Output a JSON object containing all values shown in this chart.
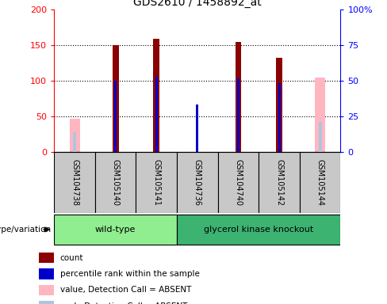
{
  "title": "GDS2610 / 1458892_at",
  "samples": [
    "GSM104738",
    "GSM105140",
    "GSM105141",
    "GSM104736",
    "GSM104740",
    "GSM105142",
    "GSM105144"
  ],
  "count_values": [
    null,
    150,
    158,
    null,
    154,
    132,
    null
  ],
  "percentile_rank": [
    null,
    100,
    105,
    67,
    103,
    96,
    null
  ],
  "absent_value": [
    47,
    null,
    null,
    null,
    null,
    null,
    104
  ],
  "absent_rank": [
    28,
    null,
    null,
    null,
    null,
    null,
    42
  ],
  "ylim_left": [
    0,
    200
  ],
  "ylim_right": [
    0,
    100
  ],
  "yticks_left": [
    0,
    50,
    100,
    150,
    200
  ],
  "yticks_right": [
    0,
    25,
    50,
    75,
    100
  ],
  "ytick_labels_left": [
    "0",
    "50",
    "100",
    "150",
    "200"
  ],
  "ytick_labels_right": [
    "0",
    "25",
    "50",
    "75",
    "100%"
  ],
  "group1_label": "wild-type",
  "group1_indices": [
    0,
    1,
    2
  ],
  "group1_color": "#90EE90",
  "group2_label": "glycerol kinase knockout",
  "group2_indices": [
    3,
    4,
    5,
    6
  ],
  "group2_color": "#3CB371",
  "count_color": "#8B0000",
  "rank_color": "#0000CD",
  "absent_value_color": "#FFB6C1",
  "absent_rank_color": "#B0C4DE",
  "bg_color": "#C8C8C8",
  "legend_items": [
    {
      "color": "#8B0000",
      "label": "count"
    },
    {
      "color": "#0000CD",
      "label": "percentile rank within the sample"
    },
    {
      "color": "#FFB6C1",
      "label": "value, Detection Call = ABSENT"
    },
    {
      "color": "#B0C4DE",
      "label": "rank, Detection Call = ABSENT"
    }
  ]
}
